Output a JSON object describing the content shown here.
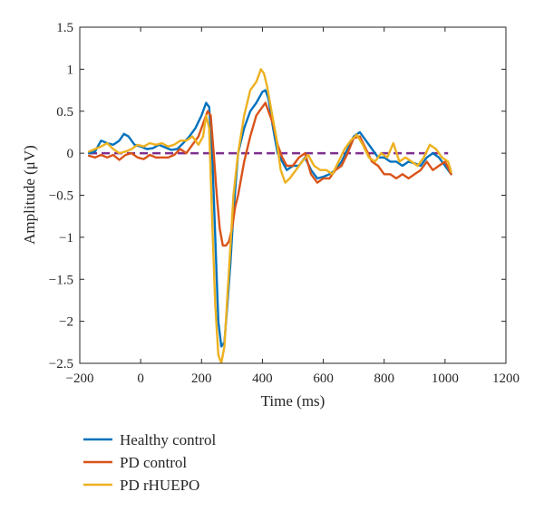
{
  "chart_data": {
    "type": "line",
    "title": "",
    "xlabel": "Time (ms)",
    "ylabel": "Amplitude (μV)",
    "xlim": [
      -200,
      1200
    ],
    "ylim": [
      -2.5,
      1.5
    ],
    "x_ticks": [
      -200,
      0,
      200,
      400,
      600,
      800,
      1000,
      1200
    ],
    "x_tick_labels": [
      "−200",
      "0",
      "200",
      "400",
      "600",
      "800",
      "1000",
      "1200"
    ],
    "y_ticks": [
      1.5,
      1,
      0.5,
      0,
      -0.5,
      -1,
      -1.5,
      -2,
      -2.5
    ],
    "y_tick_labels": [
      "1.5",
      "1",
      "0.5",
      "0",
      "−0.5",
      "−1",
      "−1.5",
      "−2",
      "−2.5"
    ],
    "grid": false,
    "legend_position": "below",
    "baseline": {
      "y": 0,
      "x_range": [
        -170,
        1010
      ],
      "color": "#7E2F8E",
      "style": "dashed"
    },
    "series": [
      {
        "name": "Healthy control",
        "color": "#0072BD",
        "x": [
          -170,
          -150,
          -130,
          -110,
          -90,
          -70,
          -55,
          -40,
          -20,
          0,
          20,
          40,
          60,
          80,
          100,
          120,
          140,
          160,
          180,
          200,
          215,
          225,
          235,
          245,
          255,
          265,
          275,
          285,
          295,
          305,
          320,
          340,
          360,
          380,
          400,
          410,
          420,
          435,
          450,
          465,
          480,
          500,
          520,
          540,
          560,
          580,
          600,
          620,
          640,
          660,
          680,
          700,
          720,
          740,
          760,
          780,
          800,
          820,
          840,
          860,
          880,
          900,
          920,
          940,
          960,
          980,
          1000,
          1020
        ],
        "values": [
          0.0,
          0.02,
          0.15,
          0.12,
          0.1,
          0.15,
          0.23,
          0.2,
          0.1,
          0.08,
          0.05,
          0.06,
          0.1,
          0.07,
          0.04,
          0.05,
          0.12,
          0.2,
          0.3,
          0.45,
          0.6,
          0.55,
          0.0,
          -1.0,
          -2.0,
          -2.3,
          -2.25,
          -1.8,
          -1.3,
          -0.7,
          0.0,
          0.3,
          0.5,
          0.6,
          0.73,
          0.75,
          0.65,
          0.3,
          0.0,
          -0.1,
          -0.2,
          -0.15,
          -0.15,
          -0.05,
          -0.2,
          -0.3,
          -0.28,
          -0.25,
          -0.2,
          -0.1,
          0.05,
          0.2,
          0.25,
          0.15,
          0.05,
          -0.05,
          -0.05,
          -0.1,
          -0.1,
          -0.15,
          -0.1,
          -0.12,
          -0.15,
          -0.05,
          0.0,
          -0.05,
          -0.15,
          -0.25
        ]
      },
      {
        "name": "PD control",
        "color": "#D95319",
        "x": [
          -170,
          -150,
          -130,
          -110,
          -90,
          -70,
          -50,
          -30,
          -10,
          10,
          30,
          50,
          70,
          90,
          110,
          130,
          150,
          170,
          190,
          210,
          220,
          230,
          240,
          250,
          260,
          270,
          280,
          290,
          300,
          310,
          320,
          340,
          360,
          380,
          400,
          410,
          420,
          435,
          450,
          465,
          480,
          500,
          520,
          540,
          560,
          580,
          600,
          620,
          640,
          660,
          680,
          700,
          720,
          740,
          760,
          780,
          800,
          820,
          840,
          860,
          880,
          900,
          920,
          940,
          960,
          980,
          1000,
          1020
        ],
        "values": [
          -0.03,
          -0.05,
          -0.02,
          -0.05,
          -0.02,
          -0.08,
          -0.02,
          0.0,
          -0.05,
          -0.07,
          -0.02,
          -0.05,
          -0.05,
          -0.05,
          -0.02,
          0.05,
          0.0,
          0.1,
          0.2,
          0.4,
          0.5,
          0.45,
          0.0,
          -0.5,
          -0.9,
          -1.1,
          -1.1,
          -1.05,
          -0.9,
          -0.65,
          -0.5,
          -0.1,
          0.2,
          0.45,
          0.55,
          0.6,
          0.5,
          0.35,
          0.1,
          -0.05,
          -0.15,
          -0.15,
          -0.05,
          0.0,
          -0.25,
          -0.35,
          -0.3,
          -0.3,
          -0.2,
          -0.15,
          0.0,
          0.18,
          0.2,
          0.05,
          -0.1,
          -0.15,
          -0.25,
          -0.25,
          -0.3,
          -0.25,
          -0.3,
          -0.25,
          -0.2,
          -0.1,
          -0.2,
          -0.15,
          -0.1,
          -0.25
        ]
      },
      {
        "name": "PD rHUEPO",
        "color": "#EDB120",
        "x": [
          -170,
          -150,
          -130,
          -110,
          -90,
          -70,
          -50,
          -30,
          -10,
          10,
          30,
          50,
          70,
          90,
          110,
          130,
          150,
          170,
          190,
          205,
          215,
          225,
          235,
          245,
          255,
          265,
          275,
          285,
          295,
          305,
          320,
          340,
          360,
          380,
          395,
          405,
          415,
          430,
          445,
          460,
          475,
          490,
          510,
          530,
          550,
          570,
          590,
          610,
          630,
          650,
          670,
          690,
          710,
          730,
          750,
          770,
          790,
          810,
          830,
          850,
          870,
          890,
          910,
          930,
          950,
          970,
          990,
          1010,
          1020
        ],
        "values": [
          0.02,
          0.05,
          0.08,
          0.12,
          0.05,
          0.0,
          0.02,
          0.05,
          0.1,
          0.08,
          0.12,
          0.1,
          0.12,
          0.08,
          0.1,
          0.15,
          0.15,
          0.2,
          0.1,
          0.2,
          0.45,
          0.3,
          -0.8,
          -1.8,
          -2.4,
          -2.5,
          -2.3,
          -1.7,
          -1.1,
          -0.5,
          0.0,
          0.45,
          0.75,
          0.85,
          1.0,
          0.95,
          0.8,
          0.5,
          0.2,
          -0.2,
          -0.35,
          -0.3,
          -0.2,
          -0.1,
          -0.02,
          -0.15,
          -0.2,
          -0.2,
          -0.25,
          -0.1,
          0.05,
          0.15,
          0.22,
          0.1,
          -0.05,
          -0.1,
          0.0,
          -0.05,
          0.12,
          -0.1,
          -0.05,
          -0.1,
          -0.15,
          -0.05,
          0.1,
          0.05,
          -0.05,
          -0.1,
          -0.22
        ]
      }
    ]
  }
}
